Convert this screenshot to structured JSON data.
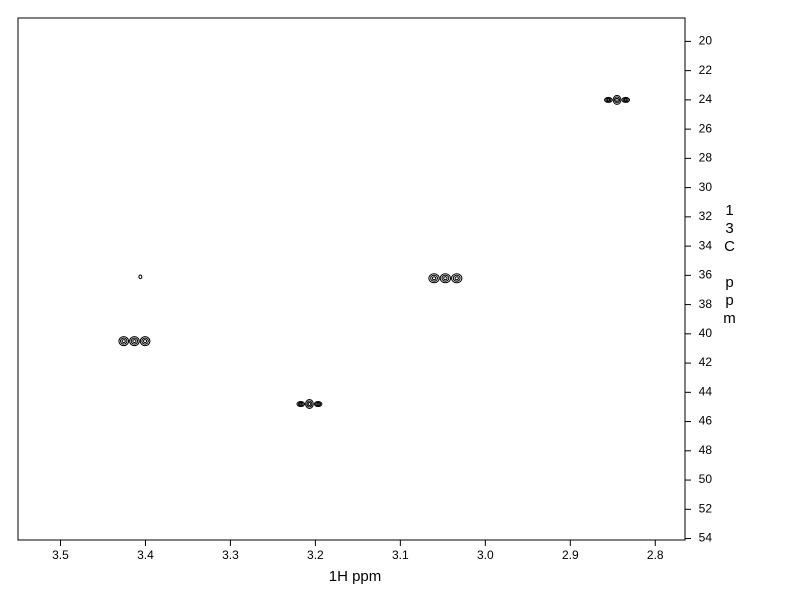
{
  "chart_data": {
    "type": "scatter",
    "x_label": "1H ppm",
    "y_label": "13C ppm",
    "x": [
      3.413,
      3.406,
      3.207,
      3.047,
      2.845
    ],
    "values": [
      40.5,
      36.1,
      44.8,
      36.2,
      24.0
    ],
    "color": "#000000",
    "xlim": [
      3.55,
      2.765
    ],
    "ylim": [
      54.1,
      18.4
    ],
    "xticks": [
      3.5,
      3.4,
      3.3,
      3.2,
      3.1,
      {
        "value": 3,
        "label": "3.0"
      },
      2.9,
      2.8
    ],
    "yticks": [
      20,
      22,
      24,
      26,
      28,
      30,
      32,
      34,
      36,
      38,
      40,
      42,
      44,
      46,
      48,
      50,
      52,
      54
    ]
  }
}
